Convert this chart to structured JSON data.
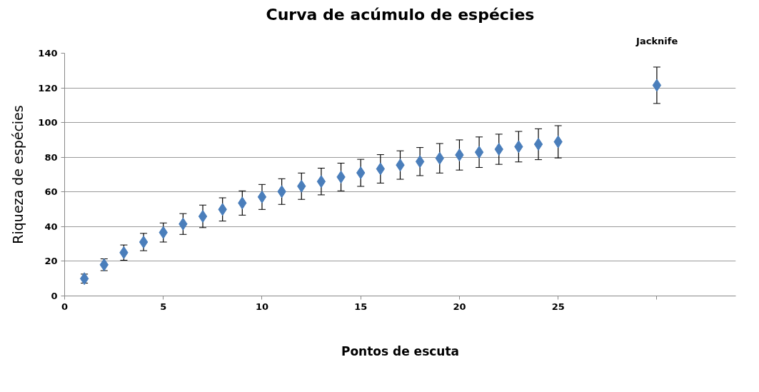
{
  "chart_data": {
    "type": "scatter",
    "title": "Curva de acúmulo de espécies",
    "xlabel": "Pontos de escuta",
    "ylabel": "Riqueza de espécies",
    "x": [
      1,
      2,
      3,
      4,
      5,
      6,
      7,
      8,
      9,
      10,
      11,
      12,
      13,
      14,
      15,
      16,
      17,
      18,
      19,
      20,
      21,
      22,
      23,
      24,
      25,
      30
    ],
    "series": [
      {
        "color": "#4a7ebb",
        "values": [
          10.0,
          18.0,
          25.0,
          31.1,
          36.6,
          41.5,
          45.9,
          49.9,
          53.6,
          57.1,
          60.2,
          63.3,
          66.0,
          68.6,
          71.0,
          73.3,
          75.5,
          77.5,
          79.4,
          81.3,
          82.9,
          84.6,
          86.1,
          87.5,
          88.9,
          121.5
        ],
        "errors": [
          2.6,
          3.4,
          4.4,
          5.0,
          5.5,
          6.0,
          6.5,
          6.7,
          7.0,
          7.2,
          7.4,
          7.6,
          7.7,
          8.0,
          7.8,
          8.2,
          8.2,
          8.1,
          8.5,
          8.7,
          8.8,
          8.7,
          8.8,
          8.9,
          9.3,
          10.5
        ]
      }
    ],
    "annotations": [
      "Jacknife"
    ],
    "xlim": [
      0,
      34
    ],
    "xticks": [
      0,
      5,
      10,
      15,
      20,
      25,
      {
        "value": 30,
        "label": null
      }
    ],
    "ylim": [
      0,
      140
    ],
    "yticks": [
      0,
      20,
      40,
      60,
      80,
      100,
      120,
      140
    ],
    "grid": "y",
    "marker": "diamond"
  }
}
